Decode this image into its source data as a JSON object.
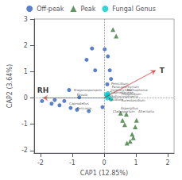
{
  "chart_data": {
    "type": "scatter",
    "xlabel": "CAP1 (12.85%)",
    "ylabel": "CAP2 (3.64%)",
    "xlim": [
      -2.2,
      2.2
    ],
    "ylim": [
      -2.1,
      3.0
    ],
    "xticks": [
      -2,
      -1,
      0,
      1,
      2
    ],
    "yticks": [
      -2,
      -1,
      0,
      1,
      2,
      3
    ],
    "grid": false,
    "legend": "top",
    "series": [
      {
        "name": "Off-peak",
        "color": "#3060bb",
        "marker": "circle",
        "values": [
          [
            -1.95,
            -0.12
          ],
          [
            -1.65,
            -0.22
          ],
          [
            -1.55,
            -0.08
          ],
          [
            -1.4,
            -0.28
          ],
          [
            -1.25,
            -0.12
          ],
          [
            -1.1,
            0.3
          ],
          [
            -1.05,
            -0.38
          ],
          [
            -0.85,
            -0.45
          ],
          [
            -0.78,
            0.02
          ],
          [
            -0.55,
            1.45
          ],
          [
            -0.48,
            -0.5
          ],
          [
            -0.38,
            1.88
          ],
          [
            -0.28,
            1.05
          ],
          [
            0.02,
            1.85
          ],
          [
            0.12,
            1.58
          ],
          [
            0.18,
            1.05
          ],
          [
            0.1,
            0.52
          ],
          [
            -0.05,
            -0.35
          ],
          [
            0.22,
            0.72
          ]
        ]
      },
      {
        "name": "Peak",
        "color": "#3a7a3a",
        "marker": "triangle",
        "values": [
          [
            0.28,
            2.6
          ],
          [
            0.38,
            2.35
          ],
          [
            0.58,
            -0.85
          ],
          [
            0.65,
            -1.02
          ],
          [
            0.7,
            -0.62
          ],
          [
            0.72,
            -1.72
          ],
          [
            0.82,
            -1.65
          ],
          [
            0.88,
            -1.38
          ],
          [
            0.92,
            -1.52
          ],
          [
            0.98,
            -1.1
          ],
          [
            1.02,
            -0.85
          ],
          [
            0.52,
            -0.58
          ]
        ]
      },
      {
        "name": "Fungal Genus",
        "color": "#00cccc",
        "marker": "circle",
        "values": [
          [
            0.06,
            0.14
          ],
          [
            0.1,
            0.08
          ],
          [
            0.08,
            0.05
          ],
          [
            0.14,
            0.12
          ],
          [
            0.12,
            0.18
          ],
          [
            0.18,
            0.02
          ],
          [
            0.1,
            -0.02
          ],
          [
            0.22,
            -0.06
          ]
        ]
      }
    ],
    "arrows": [
      {
        "label": "T",
        "x": 1.62,
        "y": 1.05,
        "color": "#cc0000"
      },
      {
        "label": "RH",
        "x": -1.92,
        "y": 0.0,
        "color": "#cc0000"
      }
    ],
    "annotations": [
      {
        "text": "Penicillium",
        "x": 0.2,
        "y": 0.55
      },
      {
        "text": "Paraconothyrium",
        "x": 0.22,
        "y": 0.42
      },
      {
        "text": "Coletorichete",
        "x": 0.18,
        "y": 0.3
      },
      {
        "text": "Didymellaceae",
        "x": 0.15,
        "y": 0.2
      },
      {
        "text": "Nothophoma",
        "x": 0.7,
        "y": 0.3
      },
      {
        "text": "Filobasidium",
        "x": 0.52,
        "y": 0.16
      },
      {
        "text": "Solicocosphaeria",
        "x": 0.2,
        "y": 0.07
      },
      {
        "text": "Fusidium",
        "x": 0.12,
        "y": -0.06
      },
      {
        "text": "Aureobasidium",
        "x": 0.52,
        "y": -0.1
      },
      {
        "text": "Aspergillus",
        "x": 0.5,
        "y": -0.38
      },
      {
        "text": "Cladosporium",
        "x": 0.25,
        "y": -0.52
      },
      {
        "text": "Alternaria",
        "x": 1.05,
        "y": -0.52
      },
      {
        "text": "Stagonosporopsis",
        "x": -0.98,
        "y": 0.3
      },
      {
        "text": "Elloula",
        "x": -0.88,
        "y": 0.12
      },
      {
        "text": "Capnodellus",
        "x": -1.12,
        "y": -0.2
      },
      {
        "text": "Periconia",
        "x": -0.88,
        "y": -0.4
      }
    ]
  }
}
